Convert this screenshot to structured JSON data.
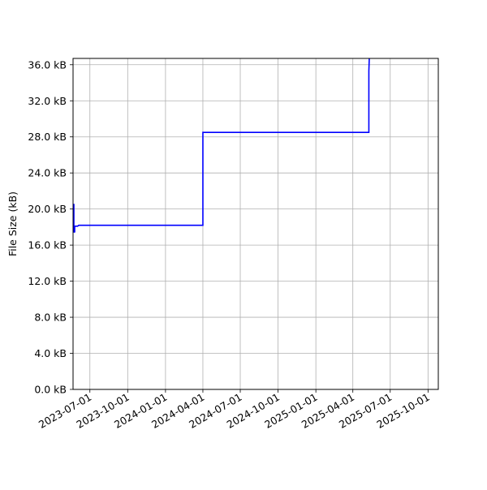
{
  "chart_data": {
    "type": "line",
    "title": "",
    "xlabel": "",
    "ylabel": "File Size (kB)",
    "x_axis_type": "date",
    "xlim": [
      "2023-05-21",
      "2025-10-26"
    ],
    "ylim": [
      0,
      36.7
    ],
    "grid": true,
    "line_color": "#0000ff",
    "xticks": [
      "2023-07-01",
      "2023-10-01",
      "2024-01-01",
      "2024-04-01",
      "2024-07-01",
      "2024-10-01",
      "2025-01-01",
      "2025-04-01",
      "2025-07-01",
      "2025-10-01"
    ],
    "yticks": [
      0,
      4,
      8,
      12,
      16,
      20,
      24,
      28,
      32,
      36
    ],
    "ytick_labels": [
      "0.0 kB",
      "4.0 kB",
      "8.0 kB",
      "12.0 kB",
      "16.0 kB",
      "20.0 kB",
      "24.0 kB",
      "28.0 kB",
      "32.0 kB",
      "36.0 kB"
    ],
    "series": [
      {
        "points": [
          [
            "2023-05-21",
            20.5
          ],
          [
            "2023-05-23",
            20.5
          ],
          [
            "2023-05-23",
            17.5
          ],
          [
            "2023-05-24",
            17.4
          ],
          [
            "2023-05-24",
            17.5
          ],
          [
            "2023-05-25",
            17.4
          ],
          [
            "2023-05-25",
            18.1
          ],
          [
            "2023-06-01",
            18.1
          ],
          [
            "2023-06-04",
            18.2
          ],
          [
            "2024-04-01",
            18.2
          ],
          [
            "2024-04-01",
            28.5
          ],
          [
            "2025-05-10",
            28.5
          ],
          [
            "2025-05-10",
            35.3
          ],
          [
            "2025-05-11",
            36.7
          ]
        ]
      }
    ]
  }
}
